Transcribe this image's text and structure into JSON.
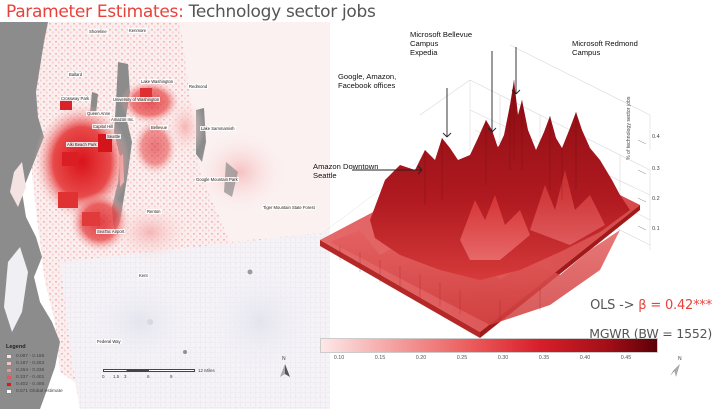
{
  "header": {
    "title_accent": "Parameter Estimates:",
    "title_rest": "Technology sector jobs"
  },
  "map": {
    "labels": [
      {
        "text": "Shoreline"
      },
      {
        "text": "Kenmore"
      },
      {
        "text": "Ballard"
      },
      {
        "text": "Lake Washington"
      },
      {
        "text": "Crossway Park"
      },
      {
        "text": "University of Washington"
      },
      {
        "text": "Queen Anne"
      },
      {
        "text": "Redmond"
      },
      {
        "text": "Amazon Inc."
      },
      {
        "text": "Capitol Hill"
      },
      {
        "text": "Seattle"
      },
      {
        "text": "Bellevue"
      },
      {
        "text": "Lake Sammamish"
      },
      {
        "text": "Alki Beach Park"
      },
      {
        "text": "Google Mountain Park"
      },
      {
        "text": "Tiger Mountain State Forest"
      },
      {
        "text": "Renton"
      },
      {
        "text": "SeaTac Airport"
      },
      {
        "text": "Kent"
      },
      {
        "text": "Federal Way"
      }
    ]
  },
  "legend": {
    "title": "Legend",
    "items": [
      {
        "label": "0.087 - 0.186",
        "color": "#fbe3e3"
      },
      {
        "label": "0.187 - 0.263",
        "color": "#f7c2c2"
      },
      {
        "label": "0.264 - 0.336",
        "color": "#f19393"
      },
      {
        "label": "0.337 - 0.401",
        "color": "#e85555"
      },
      {
        "label": "0.402 - 0.486",
        "color": "#d91a1a"
      },
      {
        "label": "0.571   Global estimate",
        "color": "#ffffff"
      }
    ]
  },
  "scalebar": {
    "ticks": [
      "0",
      "1.5",
      "3",
      "6",
      "9",
      "12 Miles"
    ]
  },
  "north_arrow": {
    "letter": "N"
  },
  "surface": {
    "callouts": [
      {
        "text": "Microsoft Bellevue\nCampus\nExpedia"
      },
      {
        "text": "Microsoft Redmond\nCampus"
      },
      {
        "text": "Google, Amazon,\nFacebook offices"
      },
      {
        "text": "Amazon Downtown\nSeattle"
      }
    ],
    "axis_label": "% of technology sector jobs",
    "axis_ticks": [
      "0.4",
      "0.3",
      "0.2",
      "0.1"
    ]
  },
  "colorbar": {
    "ticks": [
      "0.10",
      "0.15",
      "0.20",
      "0.25",
      "0.30",
      "0.35",
      "0.40",
      "0.45"
    ]
  },
  "stats": {
    "ols_prefix": "OLS -> ",
    "ols_beta": "β = 0.42***",
    "mgwr": "MGWR (BW = 1552)"
  },
  "colors": {
    "accent": "#e8413a",
    "dark_red": "#7a0a10",
    "water": "#8c8c8c"
  }
}
